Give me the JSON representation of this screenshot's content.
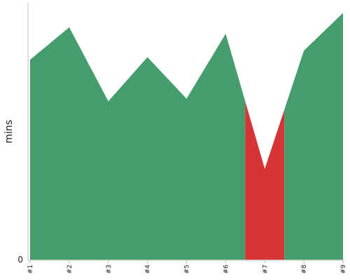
{
  "chart_data": {
    "type": "area",
    "categories": [
      "#1",
      "#2",
      "#3",
      "#4",
      "#5",
      "#6",
      "#7",
      "#8",
      "#9"
    ],
    "values": [
      77,
      89.5,
      61,
      78,
      62,
      87,
      35,
      80.5,
      95
    ],
    "highlight_category": "#7",
    "ylabel": "mins",
    "ylim": [
      0,
      100
    ],
    "y_ticks": [
      "0"
    ],
    "grid": false,
    "colors": {
      "fill": "#459c6d",
      "highlight": "#d63538",
      "axis": "#bbbbbb"
    }
  }
}
